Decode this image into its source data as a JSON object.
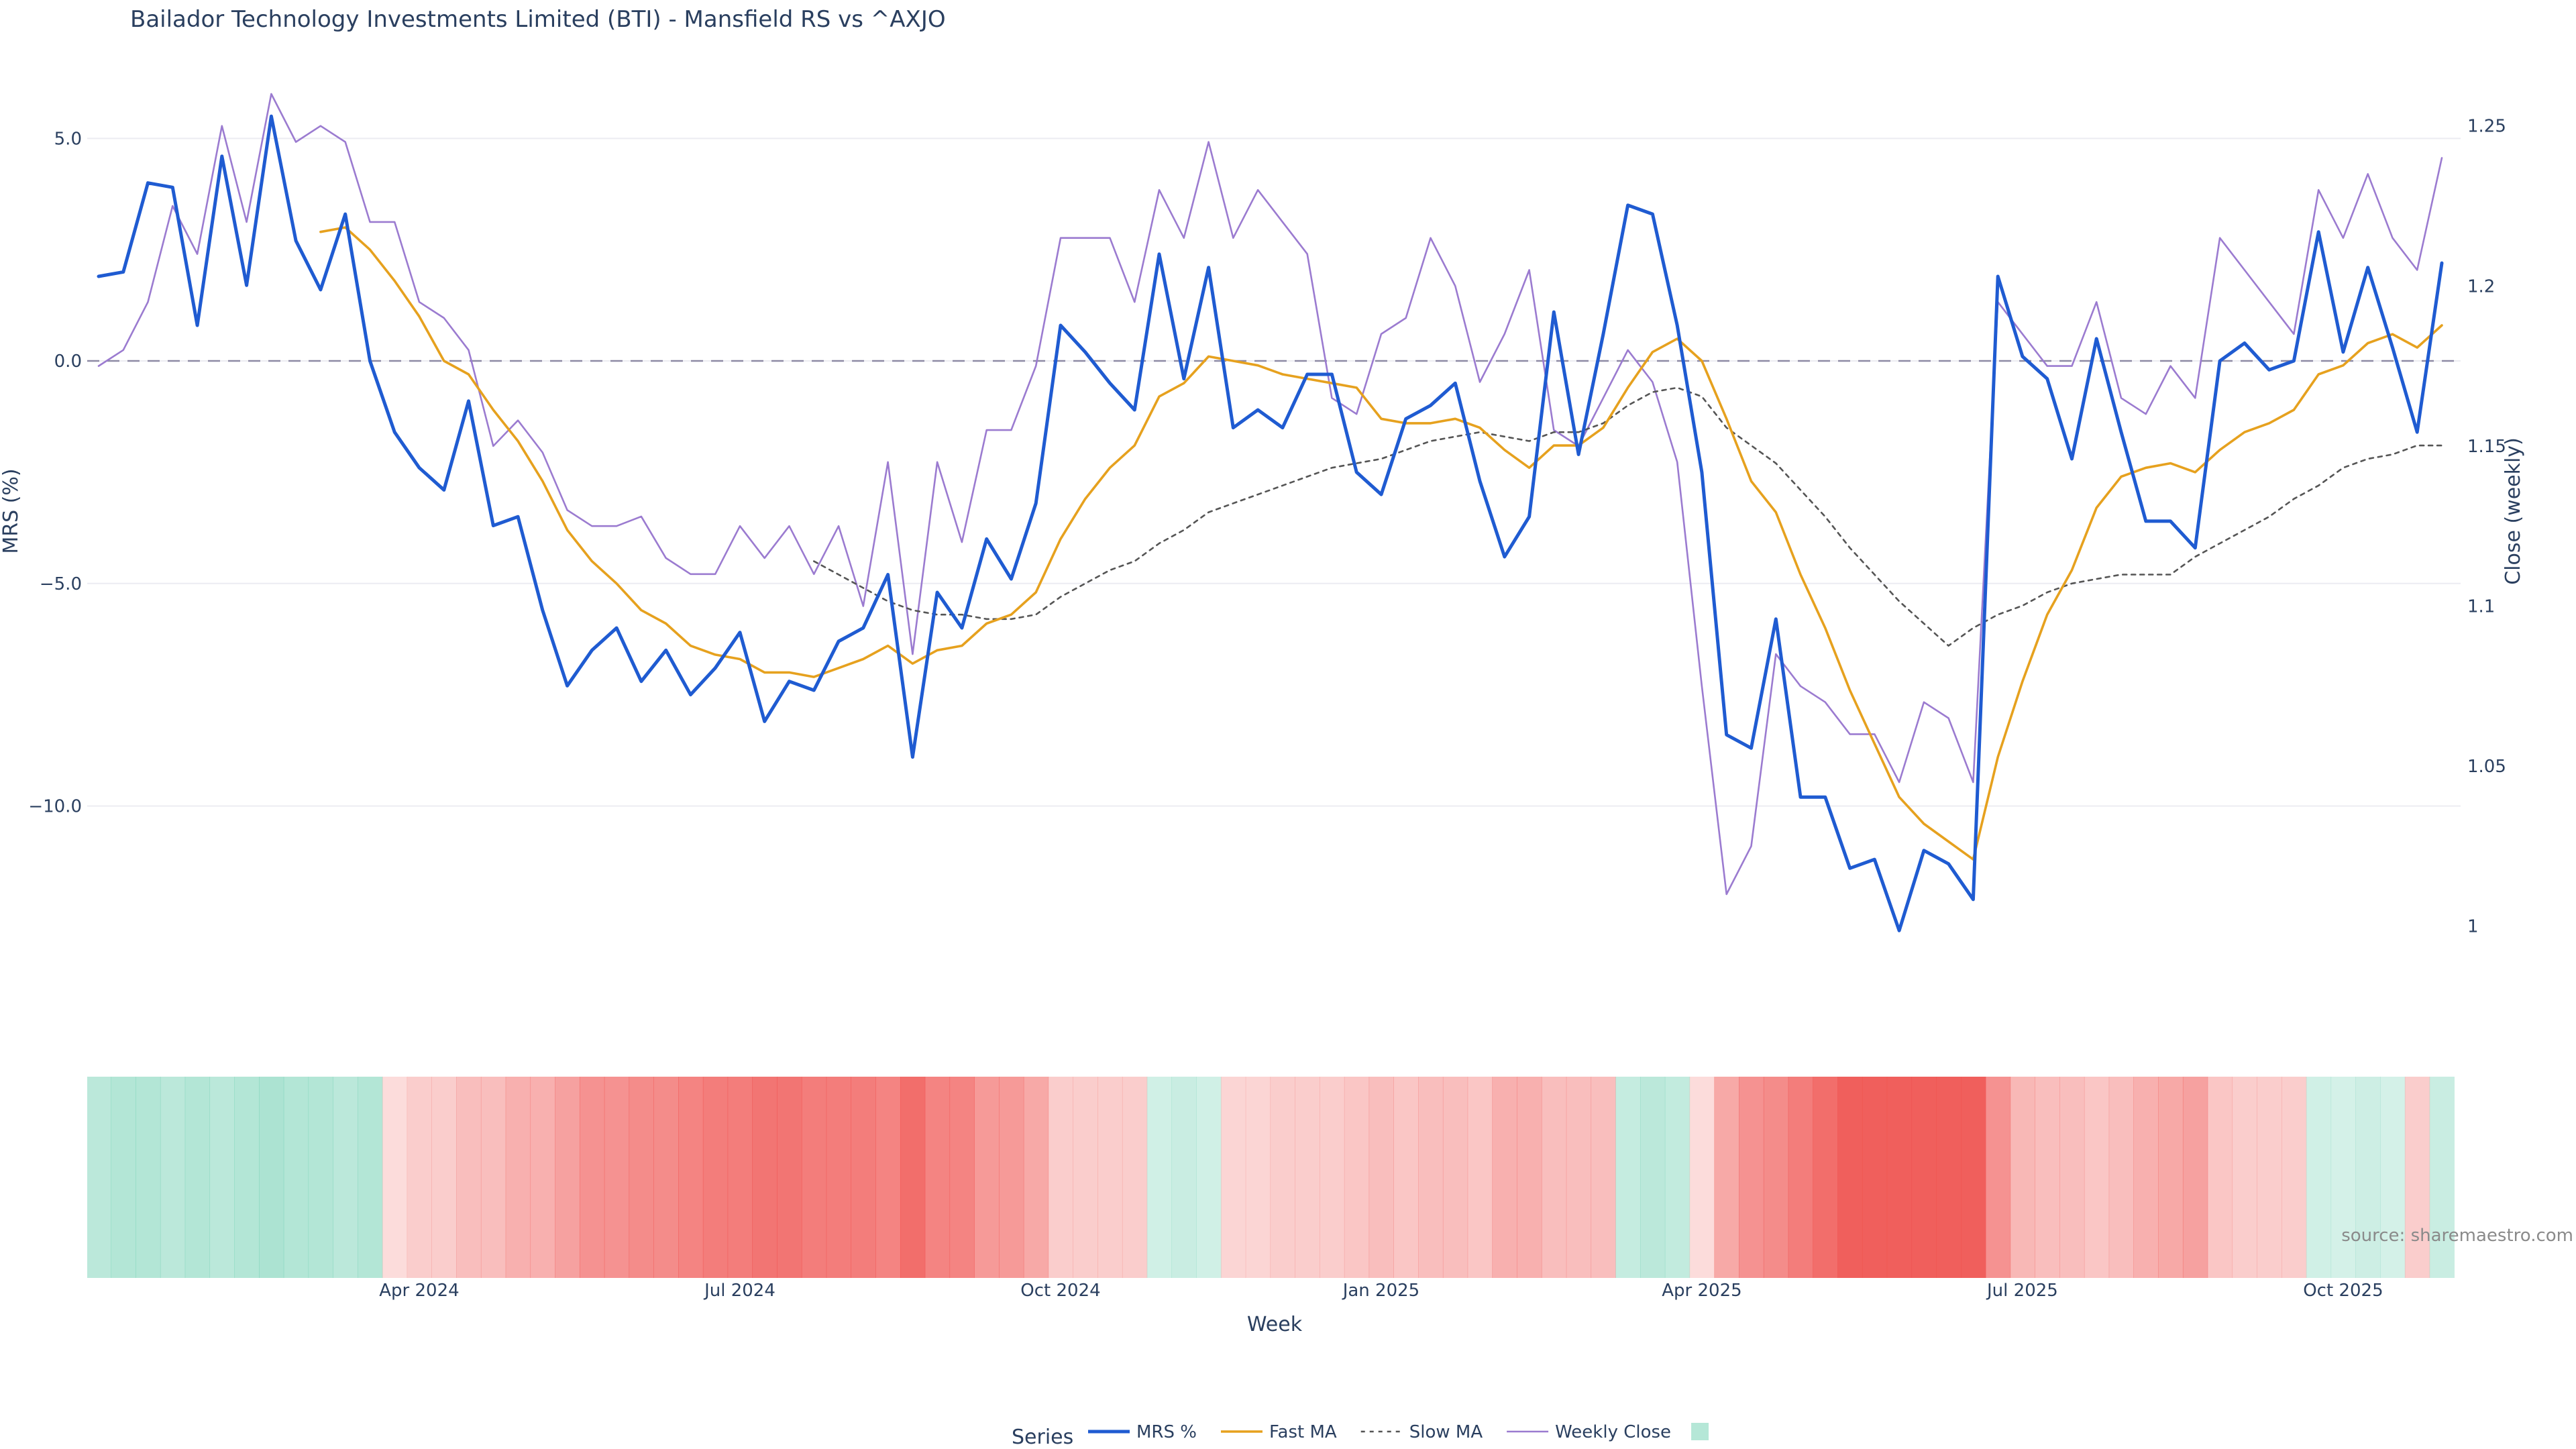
{
  "chart_data": {
    "type": "line",
    "title": "Bailador Technology Investments Limited (BTI) - Mansfield RS vs ^AXJO",
    "xlabel": "Week",
    "ylabel": "MRS (%)",
    "y2label": "Close (weekly)",
    "source": "source: sharemaestro.com",
    "legend_title": "Series",
    "legend_position": "bottom-center",
    "ylim": [
      -14.5,
      6.0
    ],
    "y2lim": [
      0.975,
      1.26
    ],
    "yticks": [
      {
        "v": 5,
        "label": "5.0"
      },
      {
        "v": 0,
        "label": "0.0"
      },
      {
        "v": -5,
        "label": "−5.0"
      },
      {
        "v": -10,
        "label": "−10.0"
      }
    ],
    "y2ticks": [
      {
        "v": 1.25,
        "label": "1.25"
      },
      {
        "v": 1.2,
        "label": "1.2"
      },
      {
        "v": 1.15,
        "label": "1.15"
      },
      {
        "v": 1.1,
        "label": "1.1"
      },
      {
        "v": 1.05,
        "label": "1.05"
      },
      {
        "v": 1.0,
        "label": "1"
      }
    ],
    "xticks": [
      {
        "week": 13,
        "label": "Apr 2024"
      },
      {
        "week": 26,
        "label": "Jul 2024"
      },
      {
        "week": 39,
        "label": "Oct 2024"
      },
      {
        "week": 52,
        "label": "Jan 2025"
      },
      {
        "week": 65,
        "label": "Apr 2025"
      },
      {
        "week": 78,
        "label": "Jul 2025"
      },
      {
        "week": 91,
        "label": "Oct 2025"
      }
    ],
    "zero_line": 0,
    "colors": {
      "mrs": "#1f5bd1",
      "fast": "#e6a11e",
      "slow": "#555555",
      "close": "#9b7bd0",
      "zero": "#8d8aa5",
      "positive": "#5cc9a7",
      "negative": "#ef5350"
    },
    "series": [
      {
        "name": "MRS %",
        "key": "mrs",
        "axis": "y",
        "values": [
          1.9,
          2.0,
          4.0,
          3.9,
          0.8,
          4.6,
          1.7,
          5.5,
          2.7,
          1.6,
          3.3,
          0.0,
          -1.6,
          -2.4,
          -2.9,
          -0.9,
          -3.7,
          -3.5,
          -5.6,
          -7.3,
          -6.5,
          -6.0,
          -7.2,
          -6.5,
          -7.5,
          -6.9,
          -6.1,
          -8.1,
          -7.2,
          -7.4,
          -6.3,
          -6.0,
          -4.8,
          -8.9,
          -5.2,
          -6.0,
          -4.0,
          -4.9,
          -3.2,
          0.8,
          0.2,
          -0.5,
          -1.1,
          2.4,
          -0.4,
          2.1,
          -1.5,
          -1.1,
          -1.5,
          -0.3,
          -0.3,
          -2.5,
          -3.0,
          -1.3,
          -1.0,
          -0.5,
          -2.7,
          -4.4,
          -3.5,
          1.1,
          -2.1,
          0.6,
          3.5,
          3.3,
          0.8,
          -2.5,
          -8.4,
          -8.7,
          -5.8,
          -9.8,
          -9.8,
          -11.4,
          -11.2,
          -12.8,
          -11.0,
          -11.3,
          -12.1,
          1.9,
          0.1,
          -0.4,
          -2.2,
          0.5,
          -1.6,
          -3.6,
          -3.6,
          -4.2,
          0.0,
          0.4,
          -0.2,
          0.0,
          2.9,
          0.2,
          2.1,
          0.3,
          -1.6,
          2.2
        ]
      },
      {
        "name": "Fast MA",
        "key": "fast",
        "axis": "y",
        "values": [
          null,
          null,
          null,
          null,
          null,
          null,
          null,
          null,
          null,
          2.9,
          3.0,
          2.5,
          1.8,
          1.0,
          0.0,
          -0.3,
          -1.1,
          -1.8,
          -2.7,
          -3.8,
          -4.5,
          -5.0,
          -5.6,
          -5.9,
          -6.4,
          -6.6,
          -6.7,
          -7.0,
          -7.0,
          -7.1,
          -6.9,
          -6.7,
          -6.4,
          -6.8,
          -6.5,
          -6.4,
          -5.9,
          -5.7,
          -5.2,
          -4.0,
          -3.1,
          -2.4,
          -1.9,
          -0.8,
          -0.5,
          0.1,
          0.0,
          -0.1,
          -0.3,
          -0.4,
          -0.5,
          -0.6,
          -1.3,
          -1.4,
          -1.4,
          -1.3,
          -1.5,
          -2.0,
          -2.4,
          -1.9,
          -1.9,
          -1.5,
          -0.6,
          0.2,
          0.5,
          0.0,
          -1.3,
          -2.7,
          -3.4,
          -4.8,
          -6.0,
          -7.4,
          -8.6,
          -9.8,
          -10.4,
          -10.8,
          -11.2,
          -8.9,
          -7.2,
          -5.7,
          -4.7,
          -3.3,
          -2.6,
          -2.4,
          -2.3,
          -2.5,
          -2.0,
          -1.6,
          -1.4,
          -1.1,
          -0.3,
          -0.1,
          0.4,
          0.6,
          0.3,
          0.8
        ]
      },
      {
        "name": "Slow MA",
        "key": "slow",
        "axis": "y",
        "values": [
          null,
          null,
          null,
          null,
          null,
          null,
          null,
          null,
          null,
          null,
          null,
          null,
          null,
          null,
          null,
          null,
          null,
          null,
          null,
          null,
          null,
          null,
          null,
          null,
          null,
          null,
          null,
          null,
          null,
          -4.5,
          -4.8,
          -5.1,
          -5.4,
          -5.6,
          -5.7,
          -5.7,
          -5.8,
          -5.8,
          -5.7,
          -5.3,
          -5.0,
          -4.7,
          -4.5,
          -4.1,
          -3.8,
          -3.4,
          -3.2,
          -3.0,
          -2.8,
          -2.6,
          -2.4,
          -2.3,
          -2.2,
          -2.0,
          -1.8,
          -1.7,
          -1.6,
          -1.7,
          -1.8,
          -1.6,
          -1.6,
          -1.4,
          -1.0,
          -0.7,
          -0.6,
          -0.8,
          -1.5,
          -1.9,
          -2.3,
          -2.9,
          -3.5,
          -4.2,
          -4.8,
          -5.4,
          -5.9,
          -6.4,
          -6.0,
          -5.7,
          -5.5,
          -5.2,
          -5.0,
          -4.9,
          -4.8,
          -4.8,
          -4.8,
          -4.4,
          -4.1,
          -3.8,
          -3.5,
          -3.1,
          -2.8,
          -2.4,
          -2.2,
          -2.1,
          -1.9,
          -1.9
        ]
      },
      {
        "name": "Weekly Close",
        "key": "close",
        "axis": "y2",
        "values": [
          1.175,
          1.18,
          1.195,
          1.225,
          1.21,
          1.25,
          1.22,
          1.26,
          1.245,
          1.25,
          1.245,
          1.22,
          1.22,
          1.195,
          1.19,
          1.18,
          1.15,
          1.158,
          1.148,
          1.13,
          1.125,
          1.125,
          1.128,
          1.115,
          1.11,
          1.11,
          1.125,
          1.115,
          1.125,
          1.11,
          1.125,
          1.1,
          1.145,
          1.085,
          1.145,
          1.12,
          1.155,
          1.155,
          1.175,
          1.215,
          1.215,
          1.215,
          1.195,
          1.23,
          1.215,
          1.245,
          1.215,
          1.23,
          1.22,
          1.21,
          1.165,
          1.16,
          1.185,
          1.19,
          1.215,
          1.2,
          1.17,
          1.185,
          1.205,
          1.155,
          1.15,
          1.165,
          1.18,
          1.17,
          1.145,
          1.075,
          1.01,
          1.025,
          1.085,
          1.075,
          1.07,
          1.06,
          1.06,
          1.045,
          1.07,
          1.065,
          1.045,
          1.195,
          1.185,
          1.175,
          1.175,
          1.195,
          1.165,
          1.16,
          1.175,
          1.165,
          1.215,
          1.205,
          1.195,
          1.185,
          1.23,
          1.215,
          1.235,
          1.215,
          1.205,
          1.24
        ]
      }
    ],
    "heatmap_strip": [
      0.6,
      0.7,
      0.7,
      0.6,
      0.7,
      0.6,
      0.7,
      0.8,
      0.7,
      0.7,
      0.6,
      0.7,
      -0.1,
      -0.2,
      -0.2,
      -0.3,
      -0.3,
      -0.4,
      -0.4,
      -0.5,
      -0.6,
      -0.6,
      -0.65,
      -0.65,
      -0.7,
      -0.75,
      -0.75,
      -0.8,
      -0.8,
      -0.75,
      -0.75,
      -0.75,
      -0.7,
      -0.85,
      -0.7,
      -0.7,
      -0.55,
      -0.55,
      -0.45,
      -0.2,
      -0.2,
      -0.2,
      -0.2,
      0.3,
      0.4,
      0.3,
      -0.15,
      -0.15,
      -0.2,
      -0.2,
      -0.2,
      -0.25,
      -0.3,
      -0.25,
      -0.3,
      -0.3,
      -0.25,
      -0.4,
      -0.4,
      -0.3,
      -0.3,
      -0.3,
      0.45,
      0.6,
      0.5,
      -0.1,
      -0.45,
      -0.6,
      -0.65,
      -0.75,
      -0.85,
      -0.95,
      -0.95,
      -0.95,
      -0.95,
      -0.95,
      -0.95,
      -0.6,
      -0.35,
      -0.3,
      -0.3,
      -0.25,
      -0.3,
      -0.4,
      -0.45,
      -0.5,
      -0.25,
      -0.2,
      -0.2,
      -0.2,
      0.3,
      0.25,
      0.35,
      0.25,
      -0.2,
      0.4
    ]
  }
}
